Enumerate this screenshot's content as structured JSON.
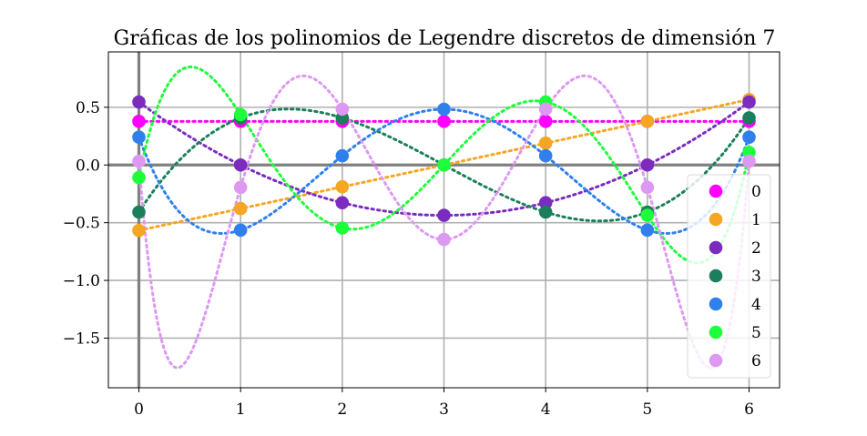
{
  "chart_data": {
    "type": "scatter",
    "title": "Gráficas de los polinomios de Legendre discretos de dimensión 7",
    "xlabel": "",
    "ylabel": "",
    "xlim": [
      -0.3,
      6.3
    ],
    "ylim": [
      -1.93,
      0.98
    ],
    "x": [
      0,
      1,
      2,
      3,
      4,
      5,
      6
    ],
    "xticks": [
      0,
      1,
      2,
      3,
      4,
      5,
      6
    ],
    "xtick_labels": [
      "0",
      "1",
      "2",
      "3",
      "4",
      "5",
      "6"
    ],
    "yticks": [
      0.5,
      0.0,
      -0.5,
      -1.0,
      -1.5
    ],
    "ytick_labels": [
      "0.5",
      "0.0",
      "−0.5",
      "−1.0",
      "−1.5"
    ],
    "grid": true,
    "zero_axes": true,
    "legend_position": "lower-right",
    "line_style": "dotted interpolating curves through the points",
    "series": [
      {
        "name": "0",
        "color": "#ff00ff",
        "values": [
          0.378,
          0.378,
          0.378,
          0.378,
          0.378,
          0.378,
          0.378
        ]
      },
      {
        "name": "1",
        "color": "#f5a623",
        "values": [
          -0.567,
          -0.378,
          -0.189,
          0.0,
          0.189,
          0.378,
          0.567
        ]
      },
      {
        "name": "2",
        "color": "#7b2cbf",
        "values": [
          0.546,
          0.0,
          -0.327,
          -0.436,
          -0.327,
          0.0,
          0.546
        ]
      },
      {
        "name": "3",
        "color": "#1a7f5a",
        "values": [
          -0.408,
          0.408,
          0.408,
          0.0,
          -0.408,
          -0.408,
          0.408
        ]
      },
      {
        "name": "4",
        "color": "#2f80ed",
        "values": [
          0.241,
          -0.564,
          0.08,
          0.483,
          0.08,
          -0.564,
          0.241
        ]
      },
      {
        "name": "5",
        "color": "#1dff3a",
        "values": [
          -0.109,
          0.436,
          -0.546,
          0.0,
          0.546,
          -0.436,
          0.109
        ]
      },
      {
        "name": "6",
        "color": "#dd99f2",
        "values": [
          0.032,
          -0.194,
          0.484,
          -0.645,
          0.484,
          -0.194,
          0.032
        ]
      }
    ]
  }
}
